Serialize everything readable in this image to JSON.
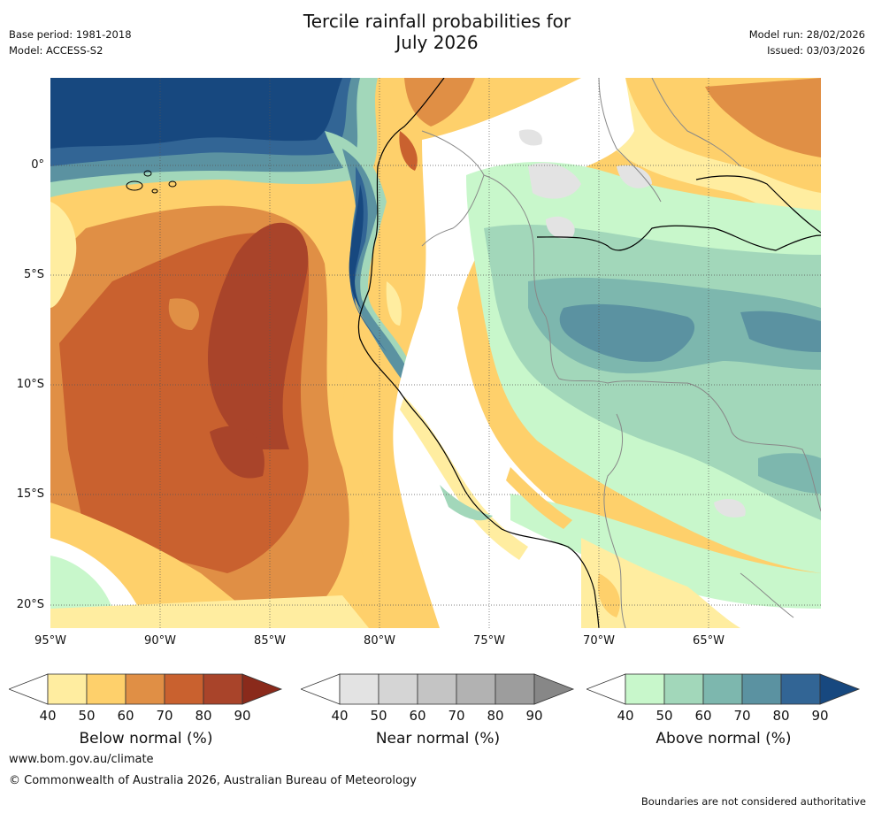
{
  "header": {
    "title_line1": "Tercile rainfall probabilities for",
    "title_line2": "July 2026",
    "base_period": "Base period: 1981-2018",
    "model": "Model: ACCESS-S2",
    "model_run": "Model run: 28/02/2026",
    "issued": "Issued: 03/03/2026"
  },
  "axes": {
    "lat_labels": [
      "0°",
      "5°S",
      "10°S",
      "15°S",
      "20°S"
    ],
    "lon_labels": [
      "95°W",
      "90°W",
      "85°W",
      "80°W",
      "75°W",
      "70°W",
      "65°W"
    ]
  },
  "colorbars": [
    {
      "title": "Below normal (%)",
      "ticks": [
        "40",
        "50",
        "60",
        "70",
        "80",
        "90"
      ],
      "colors": [
        "#ffeda0",
        "#fed06b",
        "#e08f45",
        "#c9612f",
        "#a9442a",
        "#8a2a1b"
      ]
    },
    {
      "title": "Near normal (%)",
      "ticks": [
        "40",
        "50",
        "60",
        "70",
        "80",
        "90"
      ],
      "colors": [
        "#e3e3e3",
        "#d5d5d5",
        "#c4c4c4",
        "#b2b2b2",
        "#9d9d9d",
        "#878787"
      ]
    },
    {
      "title": "Above normal (%)",
      "ticks": [
        "40",
        "50",
        "60",
        "70",
        "80",
        "90"
      ],
      "colors": [
        "#c8f7cb",
        "#a2d7ba",
        "#7db7ae",
        "#5b92a1",
        "#326595",
        "#17487f"
      ]
    }
  ],
  "footer": {
    "url": "www.bom.gov.au/climate",
    "copyright": "© Commonwealth of Australia 2026, Australian Bureau of Meteorology",
    "disclaimer": "Boundaries are not considered authoritative"
  }
}
